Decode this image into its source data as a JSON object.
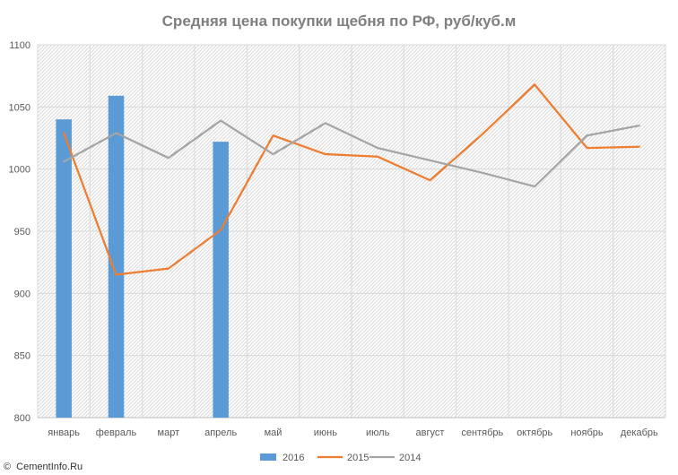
{
  "chart_data": {
    "type": "bar+line",
    "title": "Средняя цена покупки щебня по РФ, руб/куб.м",
    "categories": [
      "январь",
      "февраль",
      "март",
      "апрель",
      "май",
      "июнь",
      "июль",
      "август",
      "сентябрь",
      "октябрь",
      "ноябрь",
      "декабрь"
    ],
    "ylim": [
      800,
      1100
    ],
    "yticks": [
      800,
      850,
      900,
      950,
      1000,
      1050,
      1100
    ],
    "grid": true,
    "legend_position": "bottom",
    "series": [
      {
        "name": "2016",
        "kind": "bar",
        "color": "#5b9bd5",
        "values": [
          1040,
          1059,
          null,
          1022,
          null,
          null,
          null,
          null,
          null,
          null,
          null,
          null
        ]
      },
      {
        "name": "2015",
        "kind": "line",
        "color": "#ed7d31",
        "values": [
          1029,
          915,
          920,
          951,
          1027,
          1012,
          1010,
          991,
          1028,
          1068,
          1017,
          1018
        ]
      },
      {
        "name": "2014",
        "kind": "line",
        "color": "#a5a5a5",
        "values": [
          1006,
          1029,
          1009,
          1039,
          1012,
          1037,
          1017,
          1007,
          997,
          986,
          1027,
          1035
        ]
      }
    ]
  },
  "watermark": {
    "icon": "copyright-icon",
    "symbol": "©",
    "text": "CementInfo.Ru"
  }
}
